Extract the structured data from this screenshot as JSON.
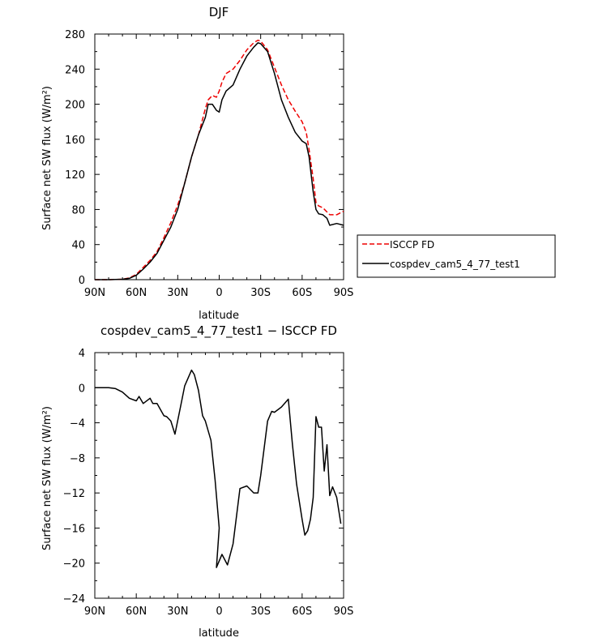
{
  "chart_data": [
    {
      "type": "line",
      "title": "DJF",
      "xlabel": "latitude",
      "ylabel": "Surface net SW flux (W/m²)",
      "xlim": [
        90,
        -90
      ],
      "ylim": [
        0,
        280
      ],
      "xticks": [
        90,
        60,
        30,
        0,
        -30,
        -60,
        -90
      ],
      "xtick_labels": [
        "90N",
        "60N",
        "30N",
        "0",
        "30S",
        "60S",
        "90S"
      ],
      "yticks": [
        0,
        40,
        80,
        120,
        160,
        200,
        240,
        280
      ],
      "ytick_labels": [
        "0",
        "40",
        "80",
        "120",
        "160",
        "200",
        "240",
        "280"
      ],
      "legend_position": "right",
      "series": [
        {
          "name": "ISCCP FD",
          "color": "#ee0000",
          "dash": "dashed",
          "x": [
            90,
            80,
            70,
            65,
            60,
            55,
            50,
            45,
            40,
            35,
            30,
            25,
            20,
            15,
            10,
            8,
            5,
            2,
            0,
            -2,
            -5,
            -10,
            -15,
            -20,
            -25,
            -28,
            -30,
            -35,
            -40,
            -45,
            -50,
            -55,
            -60,
            -63,
            -65,
            -68,
            -70,
            -72,
            -75,
            -80,
            -85,
            -90
          ],
          "y": [
            0,
            0,
            0.5,
            2,
            6,
            14,
            22,
            32,
            48,
            65,
            85,
            110,
            140,
            165,
            195,
            205,
            210,
            208,
            215,
            225,
            235,
            240,
            250,
            262,
            270,
            273,
            272,
            262,
            242,
            222,
            205,
            192,
            180,
            168,
            148,
            115,
            88,
            84,
            82,
            74,
            74,
            78
          ]
        },
        {
          "name": "cospdev_cam5_4_77_test1",
          "color": "#000000",
          "dash": "solid",
          "x": [
            90,
            80,
            70,
            65,
            60,
            55,
            50,
            45,
            40,
            35,
            30,
            25,
            20,
            15,
            10,
            8,
            5,
            2,
            0,
            -2,
            -5,
            -10,
            -15,
            -20,
            -25,
            -28,
            -30,
            -35,
            -40,
            -45,
            -50,
            -55,
            -60,
            -63,
            -65,
            -68,
            -70,
            -72,
            -75,
            -78,
            -80,
            -85,
            -90
          ],
          "y": [
            0,
            0,
            0.5,
            1.5,
            5,
            12,
            20,
            30,
            45,
            60,
            80,
            110,
            140,
            165,
            185,
            200,
            200,
            193,
            191,
            205,
            215,
            222,
            240,
            255,
            265,
            270,
            269,
            260,
            235,
            205,
            185,
            168,
            158,
            155,
            140,
            100,
            80,
            75,
            74,
            70,
            62,
            64,
            62
          ]
        }
      ]
    },
    {
      "type": "line",
      "title": "cospdev_cam5_4_77_test1 − ISCCP FD",
      "xlabel": "latitude",
      "ylabel": "Surface net SW flux (W/m²)",
      "xlim": [
        90,
        -90
      ],
      "ylim": [
        -24,
        4
      ],
      "xticks": [
        90,
        60,
        30,
        0,
        -30,
        -60,
        -90
      ],
      "xtick_labels": [
        "90N",
        "60N",
        "30N",
        "0",
        "30S",
        "60S",
        "90S"
      ],
      "yticks": [
        4,
        0,
        -4,
        -8,
        -12,
        -16,
        -20,
        -24
      ],
      "ytick_labels": [
        "4",
        "0",
        "−4",
        "−8",
        "−12",
        "−16",
        "−20",
        "−24"
      ],
      "series": [
        {
          "color": "#000000",
          "dash": "solid",
          "x": [
            90,
            80,
            75,
            70,
            65,
            60,
            58,
            55,
            50,
            48,
            45,
            40,
            38,
            35,
            32,
            28,
            25,
            20,
            18,
            15,
            12,
            10,
            6,
            3,
            0,
            2,
            -2,
            -6,
            -10,
            -15,
            -20,
            -25,
            -28,
            -30,
            -35,
            -38,
            -40,
            -45,
            -50,
            -53,
            -56,
            -60,
            -62,
            -64,
            -66,
            -68,
            -70,
            -72,
            -74,
            -76,
            -78,
            -80,
            -82,
            -85,
            -88
          ],
          "y": [
            0,
            0,
            -0.1,
            -0.5,
            -1.2,
            -1.5,
            -1.0,
            -1.8,
            -1.2,
            -1.8,
            -1.8,
            -3.2,
            -3.3,
            -3.8,
            -5.3,
            -2.2,
            0.2,
            2.0,
            1.5,
            -0.3,
            -3.2,
            -3.8,
            -6.0,
            -10.5,
            -16.0,
            -20.5,
            -19.0,
            -20.2,
            -17.8,
            -11.5,
            -11.2,
            -12.0,
            -12.0,
            -10.0,
            -3.8,
            -2.7,
            -2.8,
            -2.2,
            -1.3,
            -6.5,
            -11.0,
            -15.0,
            -16.8,
            -16.3,
            -15.0,
            -12.5,
            -3.3,
            -4.5,
            -4.5,
            -9.5,
            -6.5,
            -12.3,
            -11.3,
            -12.5,
            -15.5
          ]
        }
      ]
    }
  ]
}
